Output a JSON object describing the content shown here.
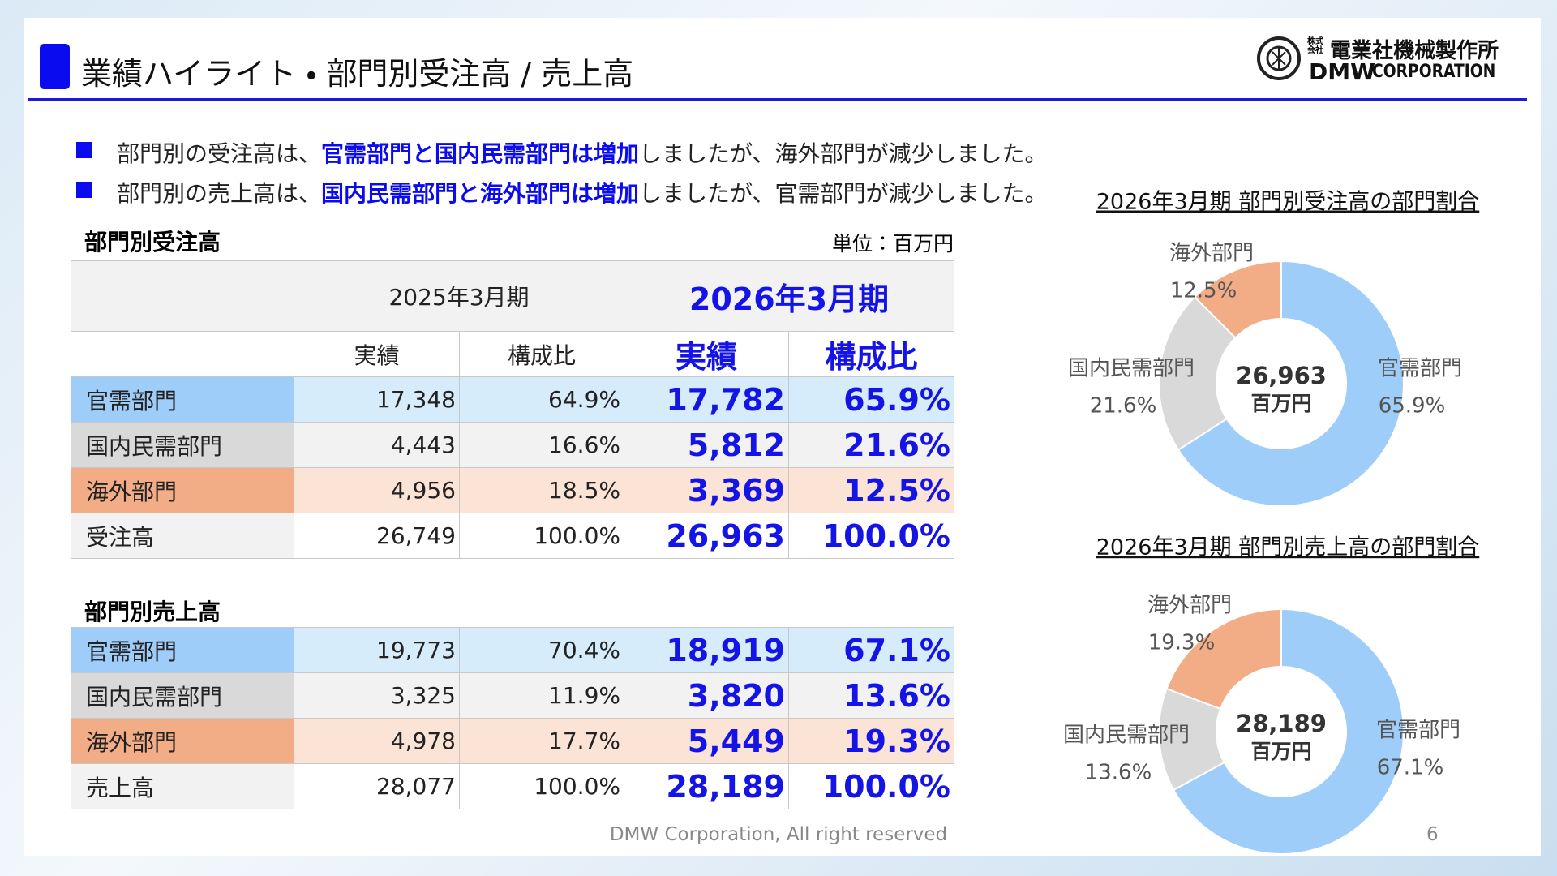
{
  "header": {
    "title": "業績ハイライト ・ 部門別受注高 / 売上高",
    "logo": {
      "small": "株式会社",
      "name": "電業社機械製作所",
      "brand": "DMW",
      "corp": "CORPORATION"
    }
  },
  "bullets": [
    {
      "parts": [
        "部門別の受注高は、",
        "官需部門と国内民需部門は増加",
        "しましたが、海外部門が減少しました。"
      ]
    },
    {
      "parts": [
        "部門別の売上高は、",
        "国内民需部門と海外部門は増加",
        "しましたが、官需部門が減少しました。"
      ]
    }
  ],
  "orders": {
    "title": "部門別受注高",
    "unit": "単位：百万円",
    "header": {
      "prev": "2025年3月期",
      "curr": "2026年3月期",
      "cols": [
        "実績",
        "構成比",
        "実績",
        "構成比"
      ]
    },
    "rows": [
      [
        "官需部門",
        "17,348",
        "64.9%",
        "17,782",
        "65.9%"
      ],
      [
        "国内民需部門",
        "4,443",
        "16.6%",
        "5,812",
        "21.6%"
      ],
      [
        "海外部門",
        "4,956",
        "18.5%",
        "3,369",
        "12.5%"
      ],
      [
        "受注高",
        "26,749",
        "100.0%",
        "26,963",
        "100.0%"
      ]
    ]
  },
  "sales": {
    "title": "部門別売上高",
    "rows": [
      [
        "官需部門",
        "19,773",
        "70.4%",
        "18,919",
        "67.1%"
      ],
      [
        "国内民需部門",
        "3,325",
        "11.9%",
        "3,820",
        "13.6%"
      ],
      [
        "海外部門",
        "4,978",
        "17.7%",
        "5,449",
        "19.3%"
      ],
      [
        "売上高",
        "28,077",
        "100.0%",
        "28,189",
        "100.0%"
      ]
    ]
  },
  "chart_data": [
    {
      "type": "pie",
      "title": "2026年3月期  部門別受注高の部門割合",
      "categories": [
        "官需部門",
        "国内民需部門",
        "海外部門"
      ],
      "values": [
        65.9,
        21.6,
        12.5
      ],
      "value_labels": [
        "65.9%",
        "21.6%",
        "12.5%"
      ],
      "colors": [
        "#9fcdf9",
        "#d9d9d9",
        "#f2ac86"
      ],
      "center_value": "26,963",
      "center_unit": "百万円"
    },
    {
      "type": "pie",
      "title": "2026年3月期  部門別売上高の部門割合",
      "categories": [
        "官需部門",
        "国内民需部門",
        "海外部門"
      ],
      "values": [
        67.1,
        13.6,
        19.3
      ],
      "value_labels": [
        "67.1%",
        "13.6%",
        "19.3%"
      ],
      "colors": [
        "#9fcdf9",
        "#d9d9d9",
        "#f2ac86"
      ],
      "center_value": "28,189",
      "center_unit": "百万円"
    }
  ],
  "footer": {
    "copyright": "DMW Corporation, All right reserved",
    "page": "6"
  }
}
